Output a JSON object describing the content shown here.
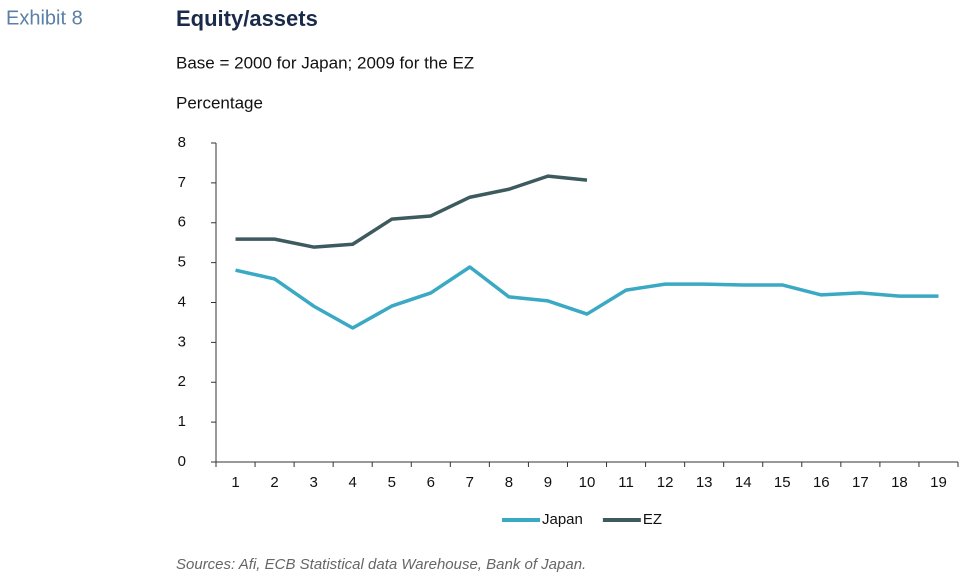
{
  "chart_data": {
    "type": "line",
    "exhibit": "Exhibit 8",
    "title": "Equity/assets",
    "subtitle": "Base = 2000 for Japan; 2009 for the EZ",
    "y_label": "Percentage",
    "source": "Sources: Afi, ECB Statistical data Warehouse, Bank of Japan.",
    "categories": [
      "1",
      "2",
      "3",
      "4",
      "5",
      "6",
      "7",
      "8",
      "9",
      "10",
      "11",
      "12",
      "13",
      "14",
      "15",
      "16",
      "17",
      "18",
      "19"
    ],
    "series": [
      {
        "name": "Japan",
        "color": "#3aa9c4",
        "values": [
          4.81,
          4.59,
          3.91,
          3.36,
          3.91,
          4.24,
          4.89,
          4.14,
          4.04,
          3.71,
          4.31,
          4.46,
          4.46,
          4.44,
          4.44,
          4.19,
          4.24,
          4.16,
          4.16
        ]
      },
      {
        "name": "EZ",
        "color": "#3d5a5f",
        "values": [
          5.59,
          5.59,
          5.39,
          5.46,
          6.09,
          6.17,
          6.64,
          6.84,
          7.17,
          7.07,
          null,
          null,
          null,
          null,
          null,
          null,
          null,
          null,
          null
        ]
      }
    ],
    "ylim": [
      0,
      8
    ],
    "yticks": [
      0,
      1,
      2,
      3,
      4,
      5,
      6,
      7,
      8
    ],
    "legend": "bottom"
  }
}
